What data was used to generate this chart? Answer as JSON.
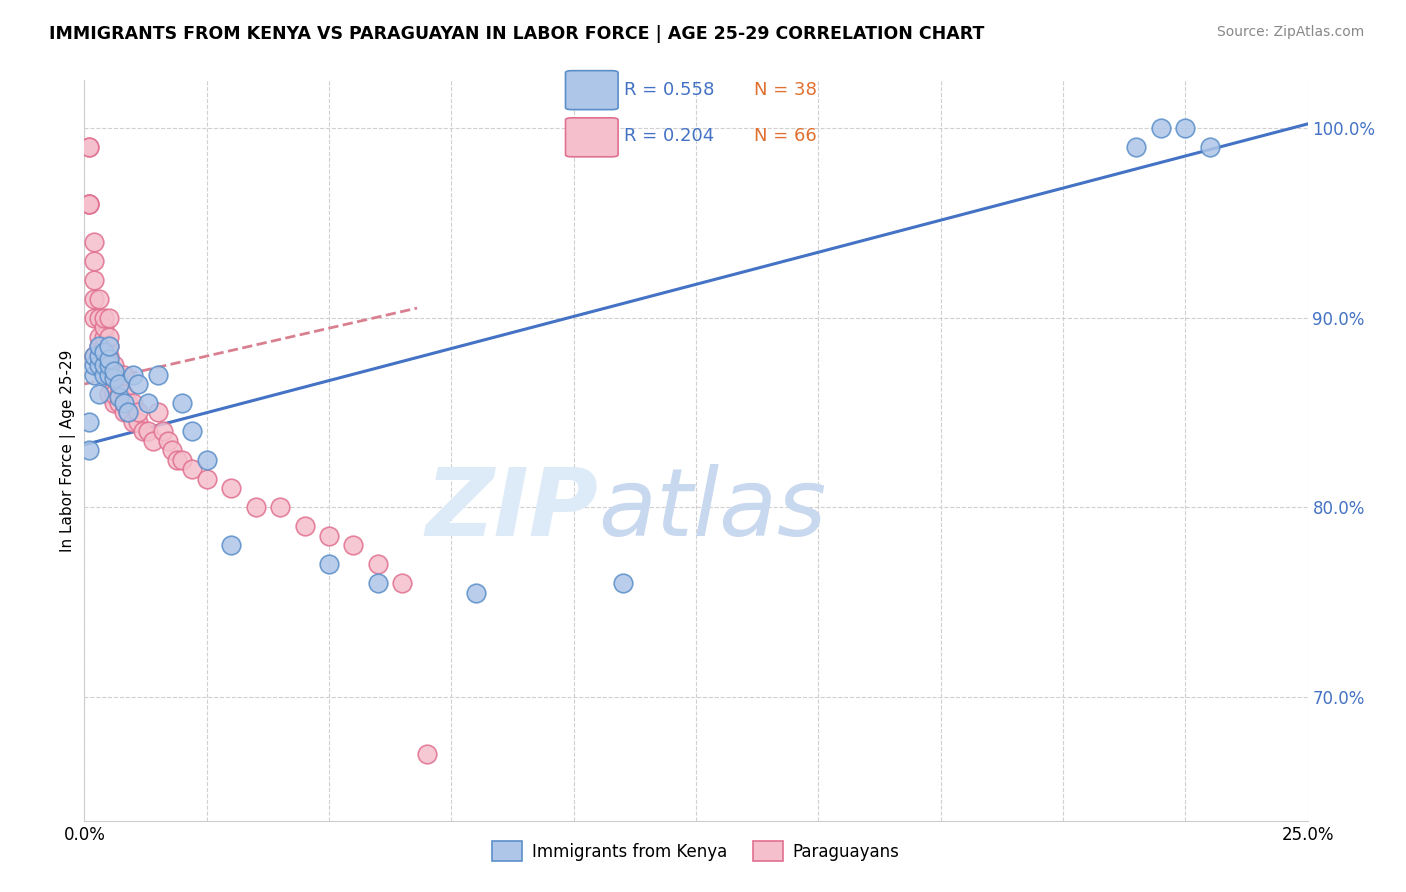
{
  "title": "IMMIGRANTS FROM KENYA VS PARAGUAYAN IN LABOR FORCE | AGE 25-29 CORRELATION CHART",
  "source": "Source: ZipAtlas.com",
  "ylabel": "In Labor Force | Age 25-29",
  "ylabel_ticks": [
    "70.0%",
    "80.0%",
    "90.0%",
    "100.0%"
  ],
  "ylabel_tick_vals": [
    0.7,
    0.8,
    0.9,
    1.0
  ],
  "xmin": 0.0,
  "xmax": 0.25,
  "ymin": 0.635,
  "ymax": 1.025,
  "kenya_color": "#aec6e8",
  "kenya_edge_color": "#5b8fc9",
  "paraguay_color": "#f5bfcc",
  "paraguay_edge_color": "#e07090",
  "kenya_line_color": "#4472c4",
  "paraguay_line_color": "#d98090",
  "R_kenya": 0.558,
  "N_kenya": 38,
  "R_paraguay": 0.204,
  "N_paraguay": 66,
  "legend_label_kenya": "Immigrants from Kenya",
  "legend_label_paraguay": "Paraguayans",
  "kenya_x": [
    0.001,
    0.001,
    0.002,
    0.002,
    0.002,
    0.003,
    0.003,
    0.003,
    0.003,
    0.004,
    0.004,
    0.004,
    0.005,
    0.005,
    0.005,
    0.005,
    0.006,
    0.006,
    0.007,
    0.007,
    0.008,
    0.009,
    0.01,
    0.011,
    0.013,
    0.015,
    0.02,
    0.022,
    0.025,
    0.03,
    0.05,
    0.06,
    0.08,
    0.11,
    0.215,
    0.22,
    0.225,
    0.23
  ],
  "kenya_y": [
    0.83,
    0.845,
    0.87,
    0.875,
    0.88,
    0.86,
    0.875,
    0.88,
    0.885,
    0.87,
    0.875,
    0.882,
    0.87,
    0.875,
    0.878,
    0.885,
    0.868,
    0.872,
    0.858,
    0.865,
    0.855,
    0.85,
    0.87,
    0.865,
    0.855,
    0.87,
    0.855,
    0.84,
    0.825,
    0.78,
    0.77,
    0.76,
    0.755,
    0.76,
    0.99,
    1.0,
    1.0,
    0.99
  ],
  "paraguay_x": [
    0.001,
    0.001,
    0.001,
    0.001,
    0.001,
    0.002,
    0.002,
    0.002,
    0.002,
    0.002,
    0.002,
    0.003,
    0.003,
    0.003,
    0.003,
    0.003,
    0.004,
    0.004,
    0.004,
    0.004,
    0.004,
    0.005,
    0.005,
    0.005,
    0.005,
    0.005,
    0.005,
    0.005,
    0.006,
    0.006,
    0.006,
    0.006,
    0.007,
    0.007,
    0.007,
    0.007,
    0.008,
    0.008,
    0.008,
    0.008,
    0.009,
    0.009,
    0.01,
    0.01,
    0.011,
    0.011,
    0.012,
    0.013,
    0.014,
    0.015,
    0.016,
    0.017,
    0.018,
    0.019,
    0.02,
    0.022,
    0.025,
    0.03,
    0.035,
    0.04,
    0.045,
    0.05,
    0.055,
    0.06,
    0.065,
    0.07
  ],
  "paraguay_y": [
    0.96,
    0.96,
    0.96,
    0.99,
    0.99,
    0.88,
    0.9,
    0.91,
    0.92,
    0.93,
    0.94,
    0.88,
    0.885,
    0.89,
    0.9,
    0.91,
    0.88,
    0.885,
    0.89,
    0.895,
    0.9,
    0.86,
    0.87,
    0.875,
    0.88,
    0.885,
    0.89,
    0.9,
    0.855,
    0.86,
    0.87,
    0.875,
    0.855,
    0.86,
    0.865,
    0.87,
    0.85,
    0.855,
    0.86,
    0.87,
    0.85,
    0.855,
    0.845,
    0.855,
    0.845,
    0.85,
    0.84,
    0.84,
    0.835,
    0.85,
    0.84,
    0.835,
    0.83,
    0.825,
    0.825,
    0.82,
    0.815,
    0.81,
    0.8,
    0.8,
    0.79,
    0.785,
    0.78,
    0.77,
    0.76,
    0.67
  ]
}
